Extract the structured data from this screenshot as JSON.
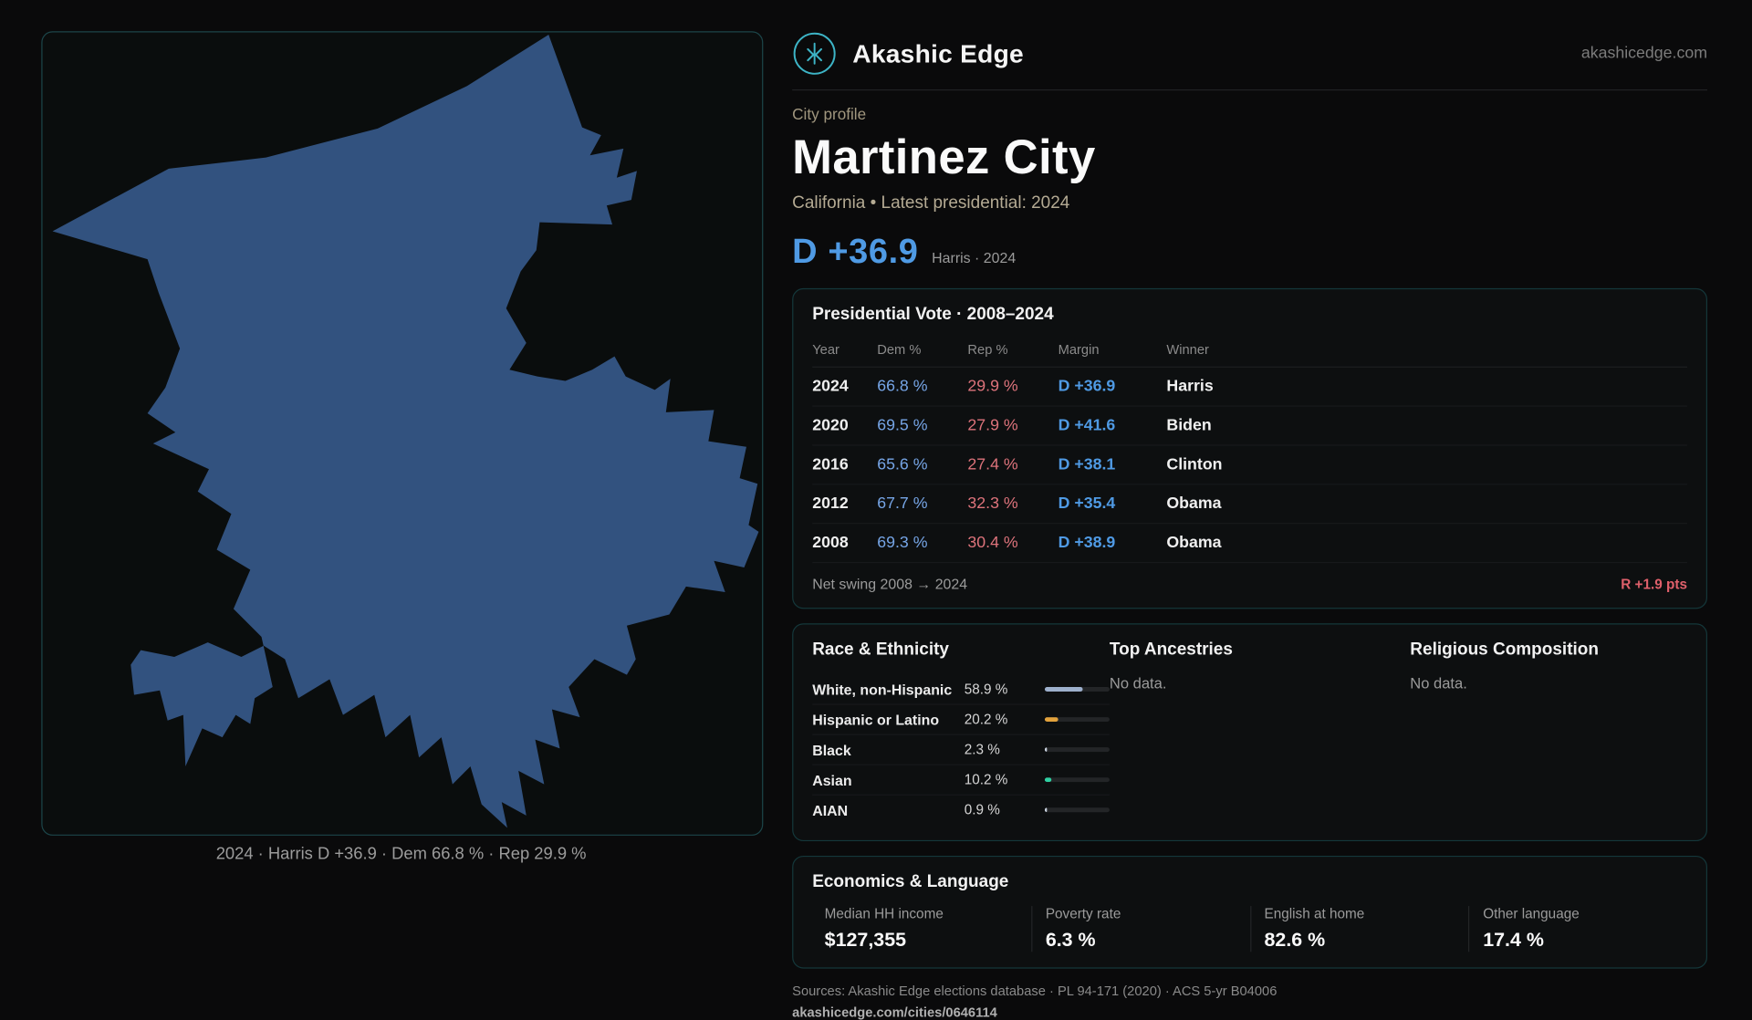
{
  "brand": {
    "name": "Akashic Edge",
    "domain": "akashicedge.com",
    "accent": "#3db4c6"
  },
  "map": {
    "caption": "2024 · Harris D +36.9 · Dem 66.8 % · Rep 29.9 %",
    "fill": "#32527f"
  },
  "profile": {
    "eyebrow": "City profile",
    "title": "Martinez City",
    "subtitle": "California • Latest presidential: 2024",
    "margin_big": "D +36.9",
    "margin_note": "Harris · 2024",
    "margin_color": "#4f9ae4"
  },
  "presidential": {
    "title": "Presidential Vote · 2008–2024",
    "columns": [
      "Year",
      "Dem %",
      "Rep %",
      "Margin",
      "Winner"
    ],
    "rows": [
      {
        "year": "2024",
        "dem": "66.8 %",
        "rep": "29.9 %",
        "margin": "D +36.9",
        "winner": "Harris"
      },
      {
        "year": "2020",
        "dem": "69.5 %",
        "rep": "27.9 %",
        "margin": "D +41.6",
        "winner": "Biden"
      },
      {
        "year": "2016",
        "dem": "65.6 %",
        "rep": "27.4 %",
        "margin": "D +38.1",
        "winner": "Clinton"
      },
      {
        "year": "2012",
        "dem": "67.7 %",
        "rep": "32.3 %",
        "margin": "D +35.4",
        "winner": "Obama"
      },
      {
        "year": "2008",
        "dem": "69.3 %",
        "rep": "30.4 %",
        "margin": "D +38.9",
        "winner": "Obama"
      }
    ],
    "net_swing_label": "Net swing 2008 → 2024",
    "net_swing_value": "R +1.9 pts"
  },
  "demographics": {
    "race": {
      "title": "Race & Ethnicity",
      "rows": [
        {
          "label": "White, non-Hispanic",
          "value": "58.9 %",
          "pct": 58.9,
          "color": "#9db0cc"
        },
        {
          "label": "Hispanic or Latino",
          "value": "20.2 %",
          "pct": 20.2,
          "color": "#e2a23c"
        },
        {
          "label": "Black",
          "value": "2.3 %",
          "pct": 2.3,
          "color": "#c9d2de"
        },
        {
          "label": "Asian",
          "value": "10.2 %",
          "pct": 10.2,
          "color": "#2fd0a2"
        },
        {
          "label": "AIAN",
          "value": "0.9 %",
          "pct": 0.9,
          "color": "#c9d2de"
        }
      ]
    },
    "ancestries": {
      "title": "Top Ancestries",
      "empty": "No data."
    },
    "religion": {
      "title": "Religious Composition",
      "empty": "No data."
    }
  },
  "economics": {
    "title": "Economics & Language",
    "stats": [
      {
        "label": "Median HH income",
        "value": "$127,355"
      },
      {
        "label": "Poverty rate",
        "value": "6.3 %"
      },
      {
        "label": "English at home",
        "value": "82.6 %"
      },
      {
        "label": "Other language",
        "value": "17.4 %"
      }
    ]
  },
  "footer": {
    "sources": "Sources: Akashic Edge elections database · PL 94-171 (2020) · ACS 5-yr B04006",
    "permalink": "akashicedge.com/cities/0646114"
  }
}
